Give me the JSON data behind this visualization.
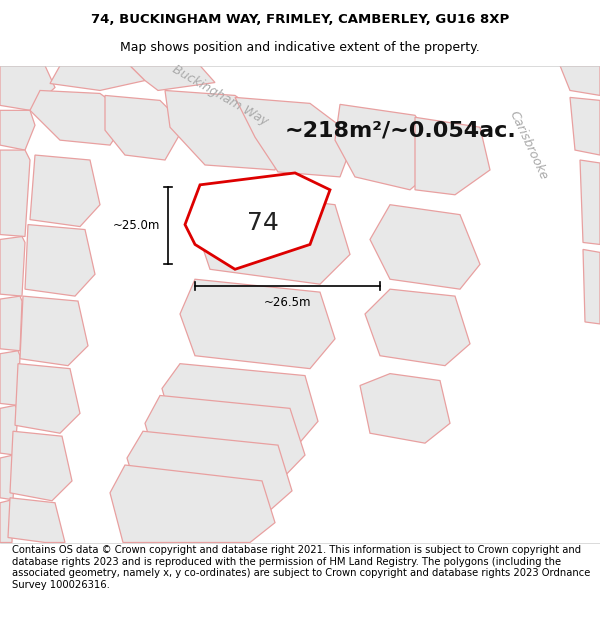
{
  "title_line1": "74, BUCKINGHAM WAY, FRIMLEY, CAMBERLEY, GU16 8XP",
  "title_line2": "Map shows position and indicative extent of the property.",
  "area_text": "~218m²/~0.054ac.",
  "plot_number": "74",
  "dim_vertical": "~25.0m",
  "dim_horizontal": "~26.5m",
  "street_name1": "Buckingham Way",
  "street_name2": "Carisbrooke",
  "footer_text": "Contains OS data © Crown copyright and database right 2021. This information is subject to Crown copyright and database rights 2023 and is reproduced with the permission of HM Land Registry. The polygons (including the associated geometry, namely x, y co-ordinates) are subject to Crown copyright and database rights 2023 Ordnance Survey 100026316.",
  "bg_color": "#f7f3f3",
  "map_bg_color": "#ffffff",
  "plot_fill": "#ffffff",
  "plot_edge": "#dd0000",
  "block_fill": "#e8e8e8",
  "block_edge": "#e8b0b0",
  "road_fill": "#ffffff",
  "title_fontsize": 9.5,
  "subtitle_fontsize": 9,
  "area_fontsize": 16,
  "plot_num_fontsize": 18,
  "dim_fontsize": 8.5,
  "street_fontsize": 9,
  "footer_fontsize": 7.2
}
